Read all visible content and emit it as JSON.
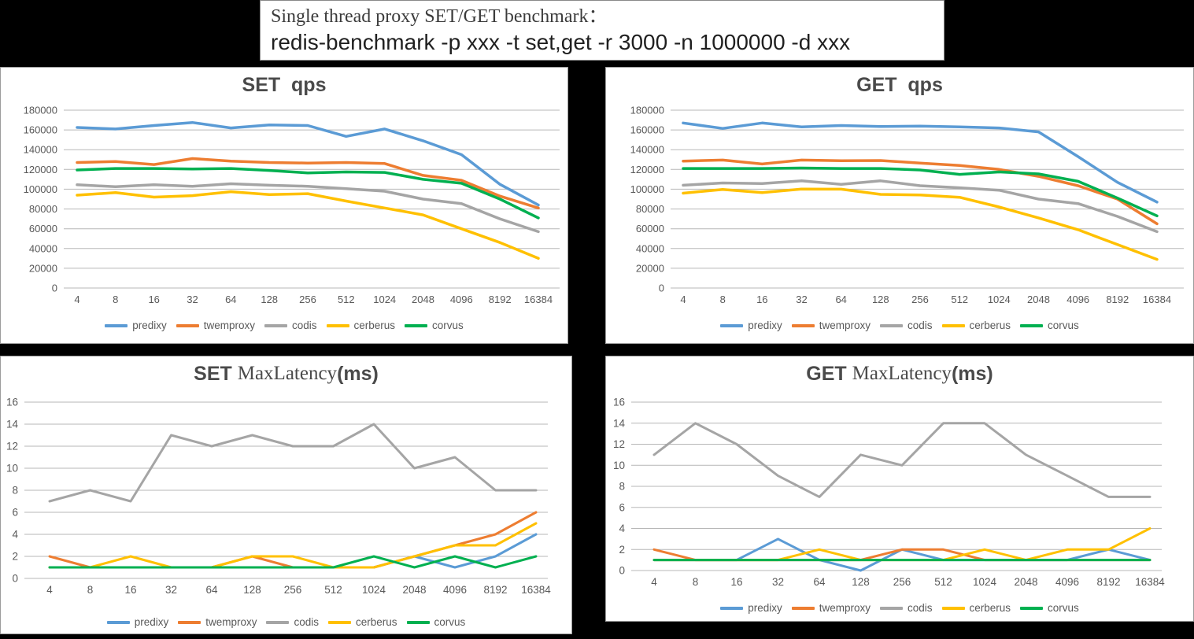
{
  "page": {
    "background": "#000000"
  },
  "header": {
    "line1": "Single thread proxy SET/GET benchmark：",
    "line2": "redis-benchmark -p xxx -t set,get -r 3000 -n 1000000 -d xxx"
  },
  "colors": {
    "predixy": "#5B9BD5",
    "twemproxy": "#ED7D31",
    "codis": "#A5A5A5",
    "cerberus": "#FFC000",
    "corvus": "#00B050"
  },
  "chart_data": [
    {
      "id": "set-qps",
      "type": "line",
      "title": "SET  qps",
      "title_bold_left": "SET  qps",
      "title_serif": "",
      "title_bold_right": "",
      "categories": [
        "4",
        "8",
        "16",
        "32",
        "64",
        "128",
        "256",
        "512",
        "1024",
        "2048",
        "4096",
        "8192",
        "16384"
      ],
      "ylim": [
        0,
        180000
      ],
      "ytick": 20000,
      "grid": true,
      "legend_position": "bottom",
      "series": [
        {
          "name": "predixy",
          "values": [
            162500,
            161000,
            164500,
            167500,
            162000,
            165000,
            164500,
            153500,
            161000,
            149000,
            135000,
            105000,
            84000
          ]
        },
        {
          "name": "twemproxy",
          "values": [
            127000,
            128000,
            125000,
            131000,
            128500,
            127000,
            126500,
            127000,
            126000,
            114000,
            109000,
            93000,
            81000
          ]
        },
        {
          "name": "codis",
          "values": [
            104500,
            102500,
            104500,
            103000,
            105500,
            104000,
            103000,
            100500,
            98000,
            90000,
            85500,
            70000,
            57000
          ]
        },
        {
          "name": "cerberus",
          "values": [
            94000,
            96500,
            92000,
            93500,
            97500,
            94500,
            95500,
            88000,
            81000,
            74000,
            60000,
            46000,
            30000
          ]
        },
        {
          "name": "corvus",
          "values": [
            119500,
            121000,
            121000,
            120500,
            121000,
            119000,
            116500,
            117500,
            117000,
            110000,
            106000,
            90000,
            71000
          ]
        }
      ]
    },
    {
      "id": "get-qps",
      "type": "line",
      "title": "GET  qps",
      "title_bold_left": "GET  qps",
      "title_serif": "",
      "title_bold_right": "",
      "categories": [
        "4",
        "8",
        "16",
        "32",
        "64",
        "128",
        "256",
        "512",
        "1024",
        "2048",
        "4096",
        "8192",
        "16384"
      ],
      "ylim": [
        0,
        180000
      ],
      "ytick": 20000,
      "grid": true,
      "legend_position": "bottom",
      "series": [
        {
          "name": "predixy",
          "values": [
            167000,
            161500,
            167000,
            163000,
            164500,
            163500,
            163800,
            163000,
            162000,
            158000,
            133000,
            107000,
            87000
          ]
        },
        {
          "name": "twemproxy",
          "values": [
            128500,
            129500,
            125500,
            129500,
            128800,
            129000,
            126500,
            124000,
            120000,
            113000,
            103500,
            90000,
            65000
          ]
        },
        {
          "name": "codis",
          "values": [
            104000,
            106300,
            105800,
            108500,
            105000,
            108500,
            103500,
            101500,
            99000,
            90000,
            85500,
            72500,
            57000
          ]
        },
        {
          "name": "cerberus",
          "values": [
            96000,
            99800,
            96500,
            100200,
            100000,
            94800,
            94200,
            91800,
            82000,
            71000,
            59000,
            44000,
            29000
          ]
        },
        {
          "name": "corvus",
          "values": [
            121000,
            121000,
            121000,
            121500,
            121000,
            121000,
            119500,
            115000,
            117500,
            115500,
            108000,
            91000,
            73000
          ]
        }
      ]
    },
    {
      "id": "set-maxlatency",
      "type": "line",
      "title": "SET MaxLatency(ms)",
      "title_bold_left": "SET ",
      "title_serif": "MaxLatency",
      "title_bold_right": "(ms)",
      "categories": [
        "4",
        "8",
        "16",
        "32",
        "64",
        "128",
        "256",
        "512",
        "1024",
        "2048",
        "4096",
        "8192",
        "16384"
      ],
      "ylim": [
        0,
        16
      ],
      "ytick": 2,
      "grid": true,
      "legend_position": "bottom",
      "series": [
        {
          "name": "predixy",
          "values": [
            1,
            1,
            1,
            1,
            1,
            1,
            1,
            1,
            1,
            2,
            1,
            2,
            4
          ]
        },
        {
          "name": "twemproxy",
          "values": [
            2,
            1,
            1,
            1,
            1,
            2,
            1,
            1,
            1,
            2,
            3,
            4,
            6
          ]
        },
        {
          "name": "codis",
          "values": [
            7,
            8,
            7,
            13,
            12,
            13,
            12,
            12,
            14,
            10,
            11,
            8,
            8
          ]
        },
        {
          "name": "cerberus",
          "values": [
            1,
            1,
            2,
            1,
            1,
            2,
            2,
            1,
            1,
            2,
            3,
            3,
            5
          ]
        },
        {
          "name": "corvus",
          "values": [
            1,
            1,
            1,
            1,
            1,
            1,
            1,
            1,
            2,
            1,
            2,
            1,
            2
          ]
        }
      ]
    },
    {
      "id": "get-maxlatency",
      "type": "line",
      "title": "GET MaxLatency(ms)",
      "title_bold_left": "GET ",
      "title_serif": "MaxLatency",
      "title_bold_right": "(ms)",
      "categories": [
        "4",
        "8",
        "16",
        "32",
        "64",
        "128",
        "256",
        "512",
        "1024",
        "2048",
        "4096",
        "8192",
        "16384"
      ],
      "ylim": [
        0,
        16
      ],
      "ytick": 2,
      "grid": true,
      "legend_position": "bottom",
      "series": [
        {
          "name": "predixy",
          "values": [
            1,
            1,
            1,
            3,
            1,
            0,
            2,
            1,
            1,
            1,
            1,
            2,
            1
          ]
        },
        {
          "name": "twemproxy",
          "values": [
            2,
            1,
            1,
            1,
            1,
            1,
            2,
            2,
            1,
            1,
            1,
            1,
            1
          ]
        },
        {
          "name": "codis",
          "values": [
            11,
            14,
            12,
            9,
            7,
            11,
            10,
            14,
            14,
            11,
            9,
            7,
            7
          ]
        },
        {
          "name": "cerberus",
          "values": [
            1,
            1,
            1,
            1,
            2,
            1,
            1,
            1,
            2,
            1,
            2,
            2,
            4
          ]
        },
        {
          "name": "corvus",
          "values": [
            1,
            1,
            1,
            1,
            1,
            1,
            1,
            1,
            1,
            1,
            1,
            1,
            1
          ]
        }
      ]
    }
  ]
}
